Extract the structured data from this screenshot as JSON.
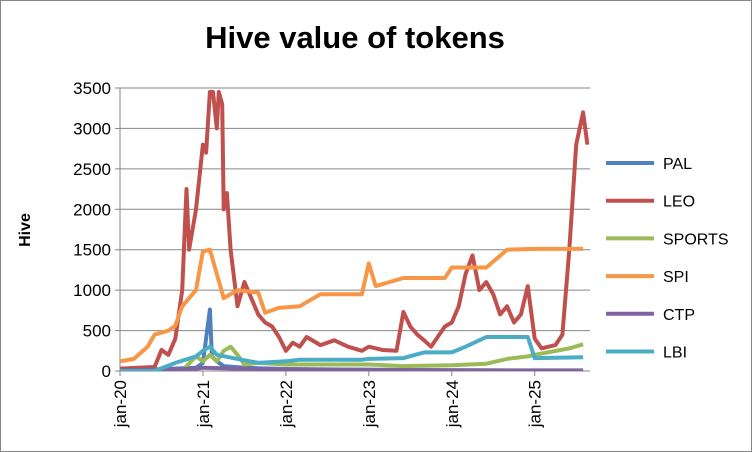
{
  "chart_data": {
    "type": "line",
    "title": "Hive value of tokens",
    "xlabel": "",
    "ylabel": "Hive",
    "ylim": [
      0,
      3500
    ],
    "yticks": [
      0,
      500,
      1000,
      1500,
      2000,
      2500,
      3000,
      3500
    ],
    "x_tick_labels": [
      "jan-20",
      "jan-21",
      "jan-22",
      "jan-23",
      "jan-24",
      "jan-25"
    ],
    "xlim": [
      "2020-01",
      "2025-09"
    ],
    "grid": "horizontal",
    "legend_position": "right",
    "series": [
      {
        "name": "PAL",
        "color": "#4f81bd",
        "points": [
          [
            "2020-01",
            20
          ],
          [
            "2020-06",
            20
          ],
          [
            "2020-12",
            40
          ],
          [
            "2021-01",
            100
          ],
          [
            "2021-02",
            760
          ],
          [
            "2021-02-10",
            180
          ],
          [
            "2021-03",
            120
          ],
          [
            "2021-04",
            60
          ],
          [
            "2021-07",
            40
          ],
          [
            "2022-01",
            25
          ],
          [
            "2023-01",
            15
          ],
          [
            "2024-01",
            10
          ],
          [
            "2025-01",
            5
          ],
          [
            "2025-08",
            5
          ]
        ]
      },
      {
        "name": "LEO",
        "color": "#c0504d",
        "points": [
          [
            "2020-01",
            30
          ],
          [
            "2020-06",
            50
          ],
          [
            "2020-07",
            260
          ],
          [
            "2020-08",
            200
          ],
          [
            "2020-09",
            400
          ],
          [
            "2020-10",
            1000
          ],
          [
            "2020-10-20",
            2250
          ],
          [
            "2020-11",
            1500
          ],
          [
            "2020-12",
            2000
          ],
          [
            "2021-01",
            2800
          ],
          [
            "2021-01-15",
            2700
          ],
          [
            "2021-02",
            3450
          ],
          [
            "2021-02-15",
            3450
          ],
          [
            "2021-03",
            3000
          ],
          [
            "2021-03-10",
            3450
          ],
          [
            "2021-03-25",
            3300
          ],
          [
            "2021-04",
            2000
          ],
          [
            "2021-04-15",
            2200
          ],
          [
            "2021-05",
            1500
          ],
          [
            "2021-06",
            800
          ],
          [
            "2021-07",
            1100
          ],
          [
            "2021-08",
            900
          ],
          [
            "2021-09",
            700
          ],
          [
            "2021-10",
            600
          ],
          [
            "2021-11",
            550
          ],
          [
            "2021-12",
            420
          ],
          [
            "2022-01",
            250
          ],
          [
            "2022-02",
            350
          ],
          [
            "2022-03",
            300
          ],
          [
            "2022-04",
            420
          ],
          [
            "2022-06",
            320
          ],
          [
            "2022-08",
            380
          ],
          [
            "2022-10",
            300
          ],
          [
            "2022-12",
            250
          ],
          [
            "2023-01",
            300
          ],
          [
            "2023-03",
            260
          ],
          [
            "2023-05",
            250
          ],
          [
            "2023-06",
            730
          ],
          [
            "2023-07",
            550
          ],
          [
            "2023-08",
            450
          ],
          [
            "2023-09",
            380
          ],
          [
            "2023-10",
            300
          ],
          [
            "2023-12",
            550
          ],
          [
            "2024-01",
            600
          ],
          [
            "2024-02",
            800
          ],
          [
            "2024-03",
            1200
          ],
          [
            "2024-04",
            1430
          ],
          [
            "2024-05",
            1000
          ],
          [
            "2024-06",
            1100
          ],
          [
            "2024-07",
            950
          ],
          [
            "2024-08",
            700
          ],
          [
            "2024-09",
            800
          ],
          [
            "2024-10",
            600
          ],
          [
            "2024-11",
            700
          ],
          [
            "2024-12",
            1050
          ],
          [
            "2025-01",
            400
          ],
          [
            "2025-02",
            280
          ],
          [
            "2025-03",
            300
          ],
          [
            "2025-04",
            320
          ],
          [
            "2025-05",
            450
          ],
          [
            "2025-06",
            1500
          ],
          [
            "2025-07",
            2800
          ],
          [
            "2025-08",
            3200
          ],
          [
            "2025-08-20",
            2800
          ]
        ]
      },
      {
        "name": "SPORTS",
        "color": "#9bbb59",
        "points": [
          [
            "2020-01",
            5
          ],
          [
            "2020-10",
            5
          ],
          [
            "2020-12",
            180
          ],
          [
            "2021-01",
            120
          ],
          [
            "2021-02",
            200
          ],
          [
            "2021-03",
            120
          ],
          [
            "2021-04",
            250
          ],
          [
            "2021-05",
            300
          ],
          [
            "2021-06",
            200
          ],
          [
            "2021-07",
            80
          ],
          [
            "2021-09",
            100
          ],
          [
            "2022-01",
            80
          ],
          [
            "2023-01",
            80
          ],
          [
            "2023-06",
            60
          ],
          [
            "2024-01",
            70
          ],
          [
            "2024-06",
            90
          ],
          [
            "2024-09",
            150
          ],
          [
            "2024-12",
            180
          ],
          [
            "2025-01",
            200
          ],
          [
            "2025-06",
            280
          ],
          [
            "2025-08",
            330
          ]
        ]
      },
      {
        "name": "SPI",
        "color": "#f79646",
        "points": [
          [
            "2020-01",
            120
          ],
          [
            "2020-03",
            150
          ],
          [
            "2020-05",
            300
          ],
          [
            "2020-06",
            450
          ],
          [
            "2020-08",
            500
          ],
          [
            "2020-09",
            560
          ],
          [
            "2020-10",
            800
          ],
          [
            "2020-12",
            1000
          ],
          [
            "2021-01",
            1480
          ],
          [
            "2021-02",
            1500
          ],
          [
            "2021-03",
            1200
          ],
          [
            "2021-04",
            900
          ],
          [
            "2021-06",
            1000
          ],
          [
            "2021-09",
            970
          ],
          [
            "2021-10",
            720
          ],
          [
            "2021-12",
            780
          ],
          [
            "2022-03",
            800
          ],
          [
            "2022-06",
            950
          ],
          [
            "2022-12",
            950
          ],
          [
            "2023-01",
            1330
          ],
          [
            "2023-02",
            1050
          ],
          [
            "2023-06",
            1150
          ],
          [
            "2023-12",
            1150
          ],
          [
            "2024-01",
            1280
          ],
          [
            "2024-06",
            1280
          ],
          [
            "2024-09",
            1500
          ],
          [
            "2025-01",
            1510
          ],
          [
            "2025-08",
            1510
          ]
        ]
      },
      {
        "name": "CTP",
        "color": "#8064a2",
        "points": [
          [
            "2020-01",
            5
          ],
          [
            "2020-12",
            30
          ],
          [
            "2021-01",
            40
          ],
          [
            "2021-06",
            30
          ],
          [
            "2022-01",
            20
          ],
          [
            "2023-01",
            15
          ],
          [
            "2024-01",
            10
          ],
          [
            "2025-01",
            8
          ],
          [
            "2025-08",
            8
          ]
        ]
      },
      {
        "name": "LBI",
        "color": "#4bacc6",
        "points": [
          [
            "2020-01",
            0
          ],
          [
            "2020-06",
            0
          ],
          [
            "2020-09",
            100
          ],
          [
            "2020-12",
            180
          ],
          [
            "2021-01",
            250
          ],
          [
            "2021-02",
            300
          ],
          [
            "2021-03",
            200
          ],
          [
            "2021-06",
            150
          ],
          [
            "2021-09",
            100
          ],
          [
            "2022-01",
            120
          ],
          [
            "2022-03",
            140
          ],
          [
            "2022-12",
            140
          ],
          [
            "2023-01",
            150
          ],
          [
            "2023-06",
            160
          ],
          [
            "2023-09",
            230
          ],
          [
            "2024-01",
            230
          ],
          [
            "2024-03",
            300
          ],
          [
            "2024-06",
            420
          ],
          [
            "2024-12",
            420
          ],
          [
            "2025-01",
            160
          ],
          [
            "2025-08",
            170
          ]
        ]
      }
    ]
  }
}
